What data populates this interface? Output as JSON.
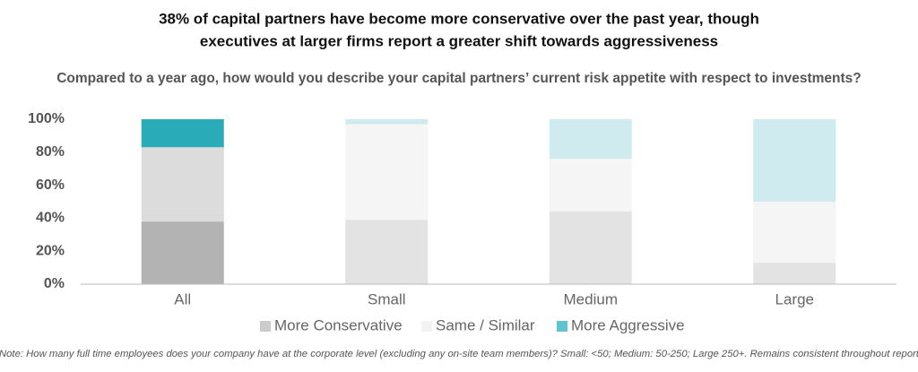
{
  "chart_data": {
    "type": "stacked-bar",
    "title": [
      "38% of capital partners have become more conservative over the past year, though",
      "executives at larger firms report a greater shift towards aggressiveness"
    ],
    "subtitle": "Compared to a year ago, how would you describe your capital partners’ current risk appetite with respect to investments?",
    "categories": [
      "All",
      "Small",
      "Medium",
      "Large"
    ],
    "series": [
      {
        "name": "More Conservative",
        "color": "#cccccc",
        "colors": [
          "#b3b3b3",
          "#e3e3e3",
          "#e3e3e3",
          "#e3e3e3"
        ],
        "values": [
          38,
          39,
          44,
          13
        ]
      },
      {
        "name": "Same / Similar",
        "color": "#f3f3f3",
        "colors": [
          "#dcdcdc",
          "#f5f5f5",
          "#f5f5f5",
          "#f5f5f5"
        ],
        "values": [
          45,
          58,
          32,
          37
        ]
      },
      {
        "name": "More Aggressive",
        "color": "#5ec4cf",
        "colors": [
          "#2aabb8",
          "#d0ebef",
          "#d0ebef",
          "#d0ebef"
        ],
        "values": [
          17,
          3,
          24,
          50
        ]
      }
    ],
    "ylim": [
      0,
      100
    ],
    "yticks": [
      {
        "value": 0,
        "label": "0%"
      },
      {
        "value": 20,
        "label": "20%"
      },
      {
        "value": 40,
        "label": "40%"
      },
      {
        "value": 60,
        "label": "60%"
      },
      {
        "value": 80,
        "label": "80%"
      },
      {
        "value": 100,
        "label": "100%"
      }
    ],
    "grid": false,
    "legend": "bottom",
    "note": "Note: How many full time employees does your company have at the corporate level (excluding any on-site team members)? Small: <50; Medium: 50-250; Large 250+. Remains consistent throughout report"
  }
}
